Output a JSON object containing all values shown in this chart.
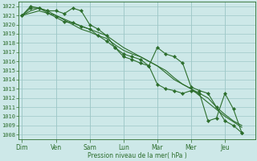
{
  "xlabel": "Pression niveau de la mer( hPa )",
  "background_color": "#cde8e8",
  "grid_color": "#9ec8c8",
  "line_color": "#2d6e2d",
  "spine_color": "#2d6e2d",
  "ylim": [
    1007.5,
    1022.5
  ],
  "xlim": [
    -0.2,
    13.8
  ],
  "ytick_min": 1008,
  "ytick_max": 1022,
  "day_labels": [
    "Dim",
    "Ven",
    "Sam",
    "Lun",
    "Mar",
    "Mer",
    "Jeu"
  ],
  "day_positions": [
    0,
    2,
    4,
    6,
    8,
    10,
    12
  ],
  "line1_x": [
    0,
    0.5,
    1.0,
    1.5,
    2.0,
    2.5,
    3.0,
    3.5,
    4.0,
    4.5,
    5.0,
    5.5,
    6.0,
    6.5,
    7.0,
    7.5,
    8.0,
    8.5,
    9.0,
    9.5,
    10.0,
    10.5,
    11.0,
    11.5,
    12.0,
    12.5,
    13.0
  ],
  "line1_y": [
    1021.0,
    1021.5,
    1021.8,
    1021.5,
    1021.0,
    1020.5,
    1020.0,
    1019.5,
    1019.2,
    1018.8,
    1018.5,
    1017.8,
    1017.2,
    1016.8,
    1016.5,
    1016.0,
    1015.5,
    1015.0,
    1014.2,
    1013.5,
    1013.0,
    1012.5,
    1012.0,
    1011.0,
    1010.2,
    1009.5,
    1009.0
  ],
  "line2_x": [
    0,
    0.5,
    1.0,
    1.5,
    2.0,
    2.5,
    3.0,
    3.5,
    4.0,
    4.5,
    5.0,
    5.5,
    6.0,
    6.5,
    7.0,
    7.5,
    8.0,
    8.5,
    9.0,
    9.5,
    10.0,
    10.5,
    11.0,
    11.5,
    12.0,
    12.5,
    13.0
  ],
  "line2_y": [
    1021.0,
    1021.8,
    1021.8,
    1021.3,
    1020.8,
    1020.3,
    1020.2,
    1019.8,
    1019.5,
    1018.8,
    1018.2,
    1017.5,
    1016.8,
    1016.5,
    1016.2,
    1015.5,
    1017.5,
    1016.8,
    1016.5,
    1015.8,
    1013.2,
    1012.8,
    1012.5,
    1011.0,
    1009.5,
    1009.0,
    1008.2
  ],
  "line3_x": [
    0,
    0.5,
    1.0,
    1.5,
    2.0,
    2.5,
    3.0,
    3.5,
    4.0,
    4.5,
    5.0,
    5.5,
    6.0,
    6.5,
    7.0,
    7.5,
    8.0,
    8.5,
    9.0,
    9.5,
    10.0,
    10.5,
    11.0,
    11.5,
    12.0,
    12.5,
    13.0
  ],
  "line3_y": [
    1021.0,
    1022.0,
    1021.8,
    1021.5,
    1021.5,
    1021.2,
    1021.8,
    1021.5,
    1020.0,
    1019.5,
    1018.8,
    1017.5,
    1016.5,
    1016.2,
    1015.8,
    1015.5,
    1013.5,
    1013.0,
    1012.8,
    1012.5,
    1012.8,
    1012.5,
    1009.5,
    1009.8,
    1012.5,
    1010.8,
    1008.2
  ],
  "line4_x": [
    0,
    1.0,
    2.0,
    3.0,
    4.0,
    5.0,
    6.0,
    7.0,
    8.0,
    9.0,
    10.0,
    11.0,
    12.0,
    13.0
  ],
  "line4_y": [
    1021.0,
    1021.5,
    1021.0,
    1020.2,
    1019.5,
    1018.8,
    1017.5,
    1016.5,
    1015.5,
    1014.0,
    1013.0,
    1011.5,
    1010.0,
    1008.8
  ]
}
